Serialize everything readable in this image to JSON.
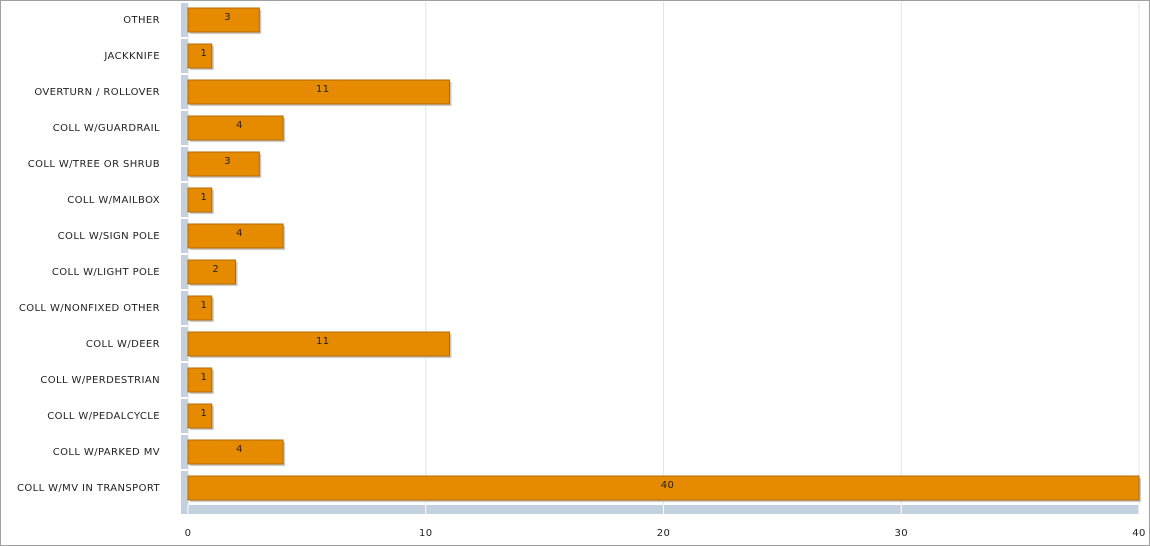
{
  "chart_data": {
    "type": "bar",
    "orientation": "horizontal",
    "categories": [
      "OTHER",
      "JACKKNIFE",
      "OVERTURN / ROLLOVER",
      "COLL W/GUARDRAIL",
      "COLL W/TREE OR SHRUB",
      "COLL W/MAILBOX",
      "COLL W/SIGN POLE",
      "COLL W/LIGHT POLE",
      "COLL W/NONFIXED OTHER",
      "COLL W/DEER",
      "COLL W/PERDESTRIAN",
      "COLL W/PEDALCYCLE",
      "COLL W/PARKED MV",
      "COLL W/MV IN TRANSPORT"
    ],
    "values": [
      3,
      1,
      11,
      4,
      3,
      1,
      4,
      2,
      1,
      11,
      1,
      1,
      4,
      40
    ],
    "color": "#e68a00",
    "xlim": [
      0,
      40
    ],
    "xticks": [
      0,
      10,
      20,
      30,
      40
    ],
    "grid": true
  }
}
